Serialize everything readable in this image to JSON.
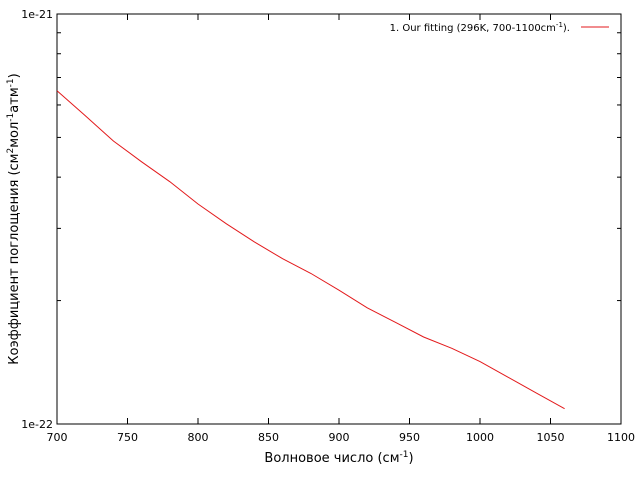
{
  "chart_data": {
    "type": "line",
    "xlabel": "Волновое число (см",
    "xlabel_sup": "-1",
    "xlabel_end": ")",
    "ylabel_parts": [
      "Коэффициент поглощения (см",
      "2",
      "мол",
      "-1",
      "атм",
      "-1",
      ")"
    ],
    "xlim": [
      700,
      1100
    ],
    "ylim": [
      1e-22,
      1e-21
    ],
    "yscale": "log",
    "grid": false,
    "legend_position": "top-right",
    "x_ticks": [
      700,
      750,
      800,
      850,
      900,
      950,
      1000,
      1050,
      1100
    ],
    "x_tick_labels": [
      "700",
      "750",
      "800",
      "850",
      "900",
      "950",
      "1000",
      "1050",
      "1100"
    ],
    "y_tick_labels": [
      {
        "value": 1e-21,
        "label": "1e-21"
      },
      {
        "value": 1e-22,
        "label": "1e-22"
      }
    ],
    "series": [
      {
        "name": "1. Our fitting  (296K, 700-1100cm",
        "name_sup": "-1",
        "name_end": ").",
        "color": "#e31a1c",
        "x": [
          700,
          720,
          740,
          760,
          780,
          800,
          820,
          840,
          860,
          880,
          900,
          920,
          940,
          960,
          980,
          1000,
          1020,
          1040,
          1060
        ],
        "y": [
          6.5e-22,
          5.65e-22,
          4.9e-22,
          4.36e-22,
          3.9e-22,
          3.44e-22,
          3.08e-22,
          2.78e-22,
          2.53e-22,
          2.33e-22,
          2.12e-22,
          1.92e-22,
          1.77e-22,
          1.63e-22,
          1.53e-22,
          1.42e-22,
          1.3e-22,
          1.19e-22,
          1.09e-22
        ]
      }
    ]
  }
}
